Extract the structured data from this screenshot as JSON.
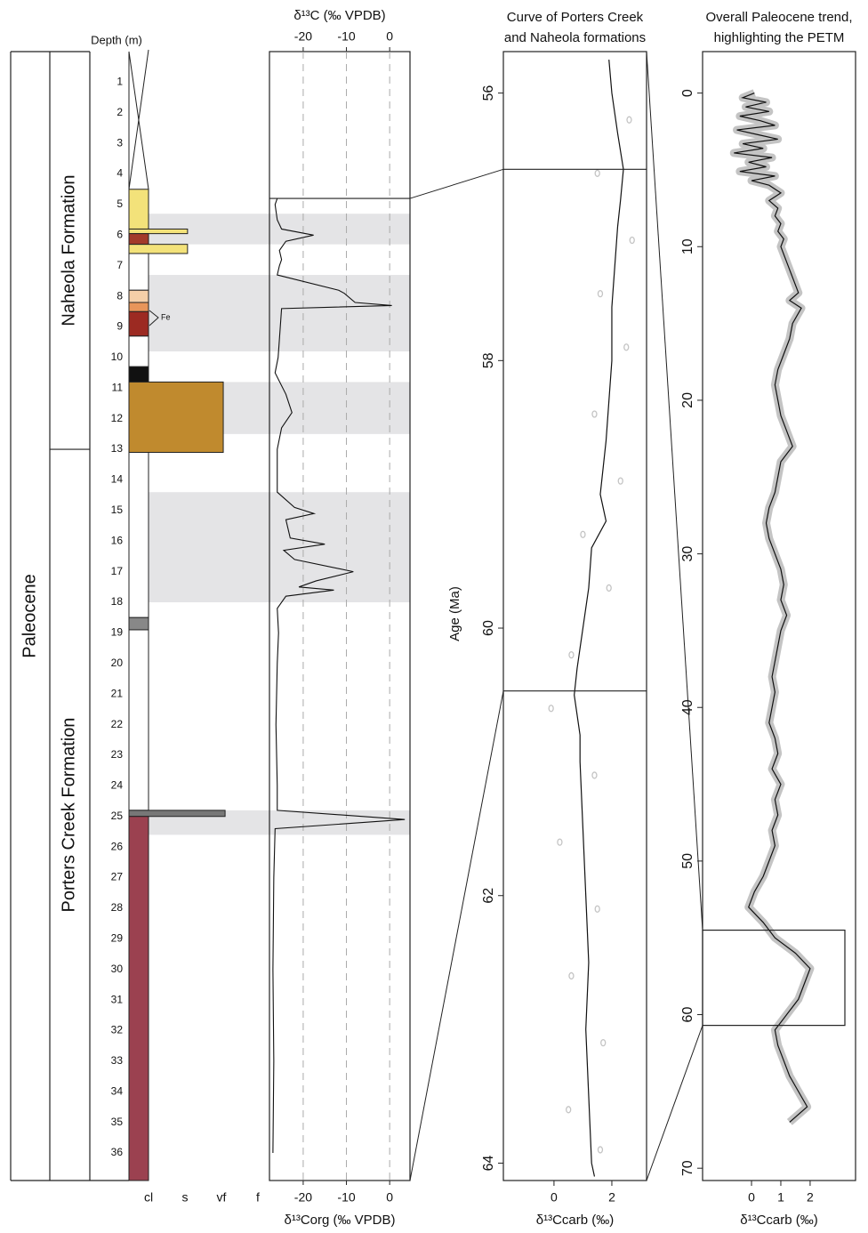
{
  "chart_data": [
    {
      "type": "column",
      "ylabel": "Depth (m)",
      "ylim": [
        0,
        36.9
      ],
      "yticks": [
        1,
        2,
        3,
        4,
        5,
        6,
        7,
        8,
        9,
        10,
        11,
        12,
        13,
        14,
        15,
        16,
        17,
        18,
        19,
        20,
        21,
        22,
        23,
        24,
        25,
        26,
        27,
        28,
        29,
        30,
        31,
        32,
        33,
        34,
        35,
        36
      ],
      "xlim": [
        0,
        3
      ],
      "xticks": [
        {
          "value": 0,
          "label": "cl"
        },
        {
          "value": 1,
          "label": "s"
        },
        {
          "value": 2,
          "label": "vf"
        },
        {
          "value": 3,
          "label": "f"
        }
      ],
      "units": [
        {
          "name": "Paleocene",
          "top": 0,
          "bottom": 36.9
        }
      ],
      "formations": [
        {
          "name": "Naheola Formation",
          "top": 0,
          "bottom": 13
        },
        {
          "name": "Porters Creek Formation",
          "top": 13,
          "bottom": 36.9
        }
      ],
      "layers": [
        {
          "top": 4.5,
          "bottom": 5.8,
          "grain": 0,
          "color": "#f3e27a"
        },
        {
          "top": 5.8,
          "bottom": 5.95,
          "grain": 1.07,
          "color": "#f3e27a"
        },
        {
          "top": 5.95,
          "bottom": 6.3,
          "grain": 0,
          "color": "#a33a2a"
        },
        {
          "top": 6.3,
          "bottom": 6.6,
          "grain": 1.07,
          "color": "#f3e27a"
        },
        {
          "top": 6.6,
          "bottom": 7.8,
          "grain": 0,
          "color": "#ffffff"
        },
        {
          "top": 7.8,
          "bottom": 8.2,
          "grain": 0,
          "color": "#f5cfa8"
        },
        {
          "top": 8.2,
          "bottom": 8.5,
          "grain": 0,
          "color": "#e8955a"
        },
        {
          "top": 8.5,
          "bottom": 9.3,
          "grain": 0,
          "color": "#9c2a22"
        },
        {
          "top": 9.3,
          "bottom": 10.3,
          "grain": 0,
          "color": "#ffffff"
        },
        {
          "top": 10.3,
          "bottom": 10.8,
          "grain": 0,
          "color": "#111111"
        },
        {
          "top": 10.8,
          "bottom": 13.1,
          "grain": 2.05,
          "color": "#c08a2e"
        },
        {
          "top": 13.1,
          "bottom": 18.5,
          "grain": 0,
          "color": "#ffffff"
        },
        {
          "top": 18.5,
          "bottom": 18.9,
          "grain": 0,
          "color": "#888888"
        },
        {
          "top": 18.9,
          "bottom": 24.8,
          "grain": 0,
          "color": "#ffffff"
        },
        {
          "top": 24.8,
          "bottom": 25.0,
          "grain": 2.1,
          "color": "#777777"
        },
        {
          "top": 25.0,
          "bottom": 36.9,
          "grain": 0,
          "color": "#9b4150"
        }
      ],
      "annotation": "Fe"
    },
    {
      "type": "line",
      "title": "δ¹³C (‰ VPDB)",
      "xlabel": "δ¹³Corg (‰ VPDB)",
      "xlim": [
        -27.8,
        4.7
      ],
      "xticks": [
        -20,
        -10,
        0
      ],
      "ylim": [
        0,
        36.9
      ],
      "grid": true,
      "highlights": [
        [
          5.3,
          6.3
        ],
        [
          7.3,
          9.8
        ],
        [
          10.8,
          12.5
        ],
        [
          14.4,
          18
        ],
        [
          24.8,
          25.6
        ]
      ],
      "depth": [
        4.8,
        5.0,
        5.5,
        5.8,
        6.0,
        6.2,
        6.5,
        6.8,
        7.0,
        7.3,
        7.8,
        7.9,
        8.2,
        8.3,
        8.4,
        9.0,
        10.0,
        10.5,
        11.2,
        11.8,
        12.3,
        13.0,
        14.4,
        14.9,
        15.1,
        15.3,
        15.9,
        16.1,
        16.3,
        16.6,
        17.0,
        17.3,
        17.5,
        17.6,
        17.8,
        18.2,
        19,
        20,
        22,
        24,
        24.8,
        25.1,
        25.4,
        27,
        30,
        33,
        36
      ],
      "values": [
        -26,
        -26.5,
        -26,
        -25,
        -17.6,
        -24,
        -25.5,
        -25,
        -25.5,
        -26,
        -11.8,
        -10.5,
        -8,
        0.5,
        -25,
        -25.3,
        -25.8,
        -26.5,
        -24,
        -22.6,
        -25,
        -26,
        -26,
        -22,
        -17.5,
        -24,
        -23,
        -15,
        -24.5,
        -22,
        -8.4,
        -17,
        -21,
        -12.9,
        -24,
        -26,
        -25.7,
        -26,
        -26.3,
        -26,
        -26,
        3.5,
        -26.5,
        -26.8,
        -27,
        -26.8,
        -27
      ],
      "color": "#111111"
    },
    {
      "type": "age",
      "title": [
        "Curve of Porters Creek",
        "and Naheola formations"
      ],
      "ylabel": "Age (Ma)",
      "xlabel": "δ¹³Ccarb (‰)",
      "ylim": [
        55.69,
        64.13
      ],
      "yticks": [
        56,
        58,
        60,
        62,
        64
      ],
      "xlim": [
        -1.75,
        3.2
      ],
      "xticks": [
        0,
        2
      ],
      "range": [
        56.57,
        60.47
      ],
      "age": [
        55.75,
        56,
        56.3,
        56.57,
        56.8,
        57,
        57.3,
        57.6,
        58,
        58.3,
        58.6,
        59,
        59.2,
        59.4,
        59.7,
        60,
        60.3,
        60.5,
        60.8,
        61,
        61.5,
        62,
        62.5,
        63,
        63.5,
        64,
        64.1
      ],
      "values": [
        1.9,
        2.0,
        2.2,
        2.4,
        2.3,
        2.2,
        2.1,
        2.0,
        2.0,
        1.9,
        1.8,
        1.6,
        1.8,
        1.3,
        1.2,
        1.0,
        0.8,
        0.7,
        0.9,
        0.9,
        1.0,
        1.1,
        1.2,
        1.1,
        1.2,
        1.3,
        1.4
      ],
      "scatter": {
        "age": [
          56.2,
          56.6,
          57.1,
          57.5,
          57.9,
          58.4,
          58.9,
          59.3,
          59.7,
          60.2,
          60.6,
          61.1,
          61.6,
          62.1,
          62.6,
          63.1,
          63.6,
          63.9
        ],
        "values": [
          2.6,
          1.5,
          2.7,
          1.6,
          2.5,
          1.4,
          2.3,
          1.0,
          1.9,
          0.6,
          -0.1,
          1.4,
          0.2,
          1.5,
          0.6,
          1.7,
          0.5,
          1.6
        ],
        "color": "#c4c4c4"
      },
      "color": "#111111"
    },
    {
      "type": "age",
      "title": [
        "Overall Paleocene trend,",
        "highlighting the PETM"
      ],
      "ylabel": "",
      "xlabel": "δ¹³Ccarb (‰)",
      "ylim": [
        -2.7,
        70.8
      ],
      "yticks": [
        0,
        10,
        20,
        30,
        40,
        50,
        60,
        70
      ],
      "xlim": [
        -1.67,
        3.55
      ],
      "xticks": [
        0,
        1,
        2
      ],
      "range": [
        54.5,
        60.7
      ],
      "age": [
        0,
        0.3,
        0.6,
        0.9,
        1.2,
        1.5,
        1.8,
        2.1,
        2.4,
        2.7,
        3.0,
        3.3,
        3.6,
        3.9,
        4.2,
        4.5,
        4.8,
        5.1,
        5.4,
        5.7,
        6.0,
        6.5,
        7,
        7.5,
        8,
        8.5,
        9,
        9.5,
        10,
        11,
        12,
        13,
        13.5,
        14,
        15,
        16,
        17,
        18,
        19,
        20,
        21,
        22,
        23,
        24,
        25,
        26,
        27,
        28,
        29,
        30,
        31,
        32,
        33,
        34,
        35,
        36,
        37,
        38,
        39,
        40,
        41,
        42,
        43,
        44,
        45,
        46,
        47,
        48,
        49,
        50,
        51,
        52,
        53,
        54,
        55,
        56,
        57,
        58,
        59,
        60,
        61,
        62,
        63,
        64,
        65,
        66,
        67
      ],
      "values": [
        0.1,
        -0.3,
        0.5,
        -0.2,
        0.6,
        -0.4,
        0.3,
        0.8,
        -0.5,
        0.2,
        0.9,
        -0.3,
        0.4,
        -0.6,
        0.7,
        -0.1,
        0.5,
        -0.4,
        0.8,
        0.0,
        0.6,
        1.0,
        0.6,
        0.9,
        0.8,
        1.0,
        0.9,
        1.1,
        1.0,
        1.2,
        1.4,
        1.6,
        1.3,
        1.7,
        1.4,
        1.3,
        1.1,
        0.9,
        0.8,
        0.9,
        1.0,
        1.2,
        1.4,
        1.0,
        0.9,
        0.8,
        0.6,
        0.5,
        0.6,
        0.8,
        1.0,
        1.1,
        1.0,
        1.2,
        1.0,
        0.9,
        0.8,
        0.7,
        0.8,
        0.7,
        0.6,
        0.8,
        0.9,
        0.7,
        1.0,
        0.8,
        0.9,
        0.7,
        0.8,
        0.6,
        0.4,
        0.1,
        -0.1,
        0.4,
        0.8,
        1.5,
        2.0,
        1.8,
        1.6,
        1.2,
        0.8,
        0.9,
        1.1,
        1.3,
        1.6,
        1.9,
        1.3
      ],
      "envelope_color": "#c4c4c4",
      "color": "#111111"
    }
  ]
}
